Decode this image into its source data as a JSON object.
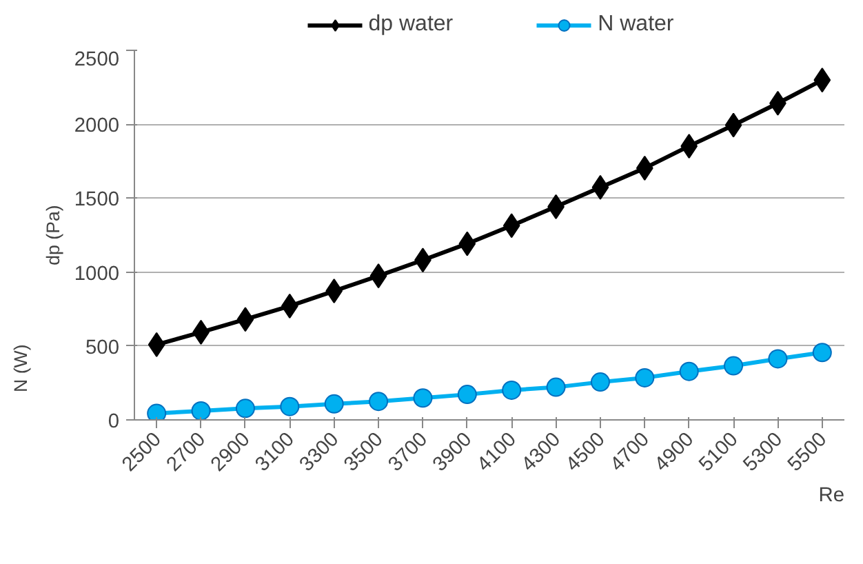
{
  "chart_data": {
    "type": "line",
    "xlabel": "Re",
    "ylabel": "dp (Pa)",
    "annotations": [
      "N (W)"
    ],
    "categories": [
      "2500",
      "2700",
      "2900",
      "3100",
      "3300",
      "3500",
      "3700",
      "3900",
      "4100",
      "4300",
      "4500",
      "4700",
      "4900",
      "5100",
      "5300",
      "5500"
    ],
    "series": [
      {
        "name": "dp water",
        "color": "#000000",
        "marker": "diamond",
        "values": [
          509,
          593,
          680,
          770,
          872,
          974,
          1081,
          1192,
          1314,
          1442,
          1573,
          1703,
          1852,
          1994,
          2142,
          2299
        ]
      },
      {
        "name": "N water",
        "color": "#00b0f0",
        "marker": "circle",
        "values": [
          44,
          61,
          78,
          90,
          108,
          125,
          148,
          172,
          201,
          221,
          256,
          285,
          328,
          366,
          413,
          456
        ]
      }
    ],
    "ylim": [
      0,
      2500
    ],
    "yticks": [
      0,
      500,
      1000,
      1500,
      2000,
      2500
    ],
    "grid": "y",
    "legend": "top"
  }
}
